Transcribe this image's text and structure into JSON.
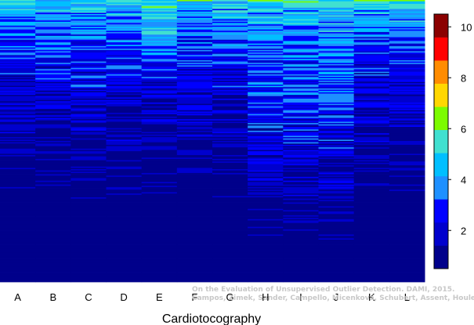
{
  "chart_data": {
    "type": "heatmap",
    "title": "",
    "xlabel": "Cardiotocography",
    "ylabel": "",
    "categories": [
      "A",
      "B",
      "C",
      "D",
      "E",
      "F",
      "G",
      "H",
      "I",
      "J",
      "K",
      "L"
    ],
    "colorbar": {
      "ticks": [
        2,
        4,
        6,
        8,
        10
      ],
      "range": [
        0.5,
        10.5
      ],
      "colors": [
        "#00008b",
        "#0000cd",
        "#0000ff",
        "#1e90ff",
        "#00bfff",
        "#40e0d0",
        "#7cfc00",
        "#ffd700",
        "#ff8c00",
        "#ff0000",
        "#8b0000"
      ]
    },
    "grid": false,
    "legend": "right"
  },
  "watermark": {
    "line1": "On the Evaluation of Unsupervised Outlier Detection. DAMI, 2015.",
    "line2": "Campos, Zimek, Sander, Campello, Micenková, Schubert, Assent, Houle"
  }
}
